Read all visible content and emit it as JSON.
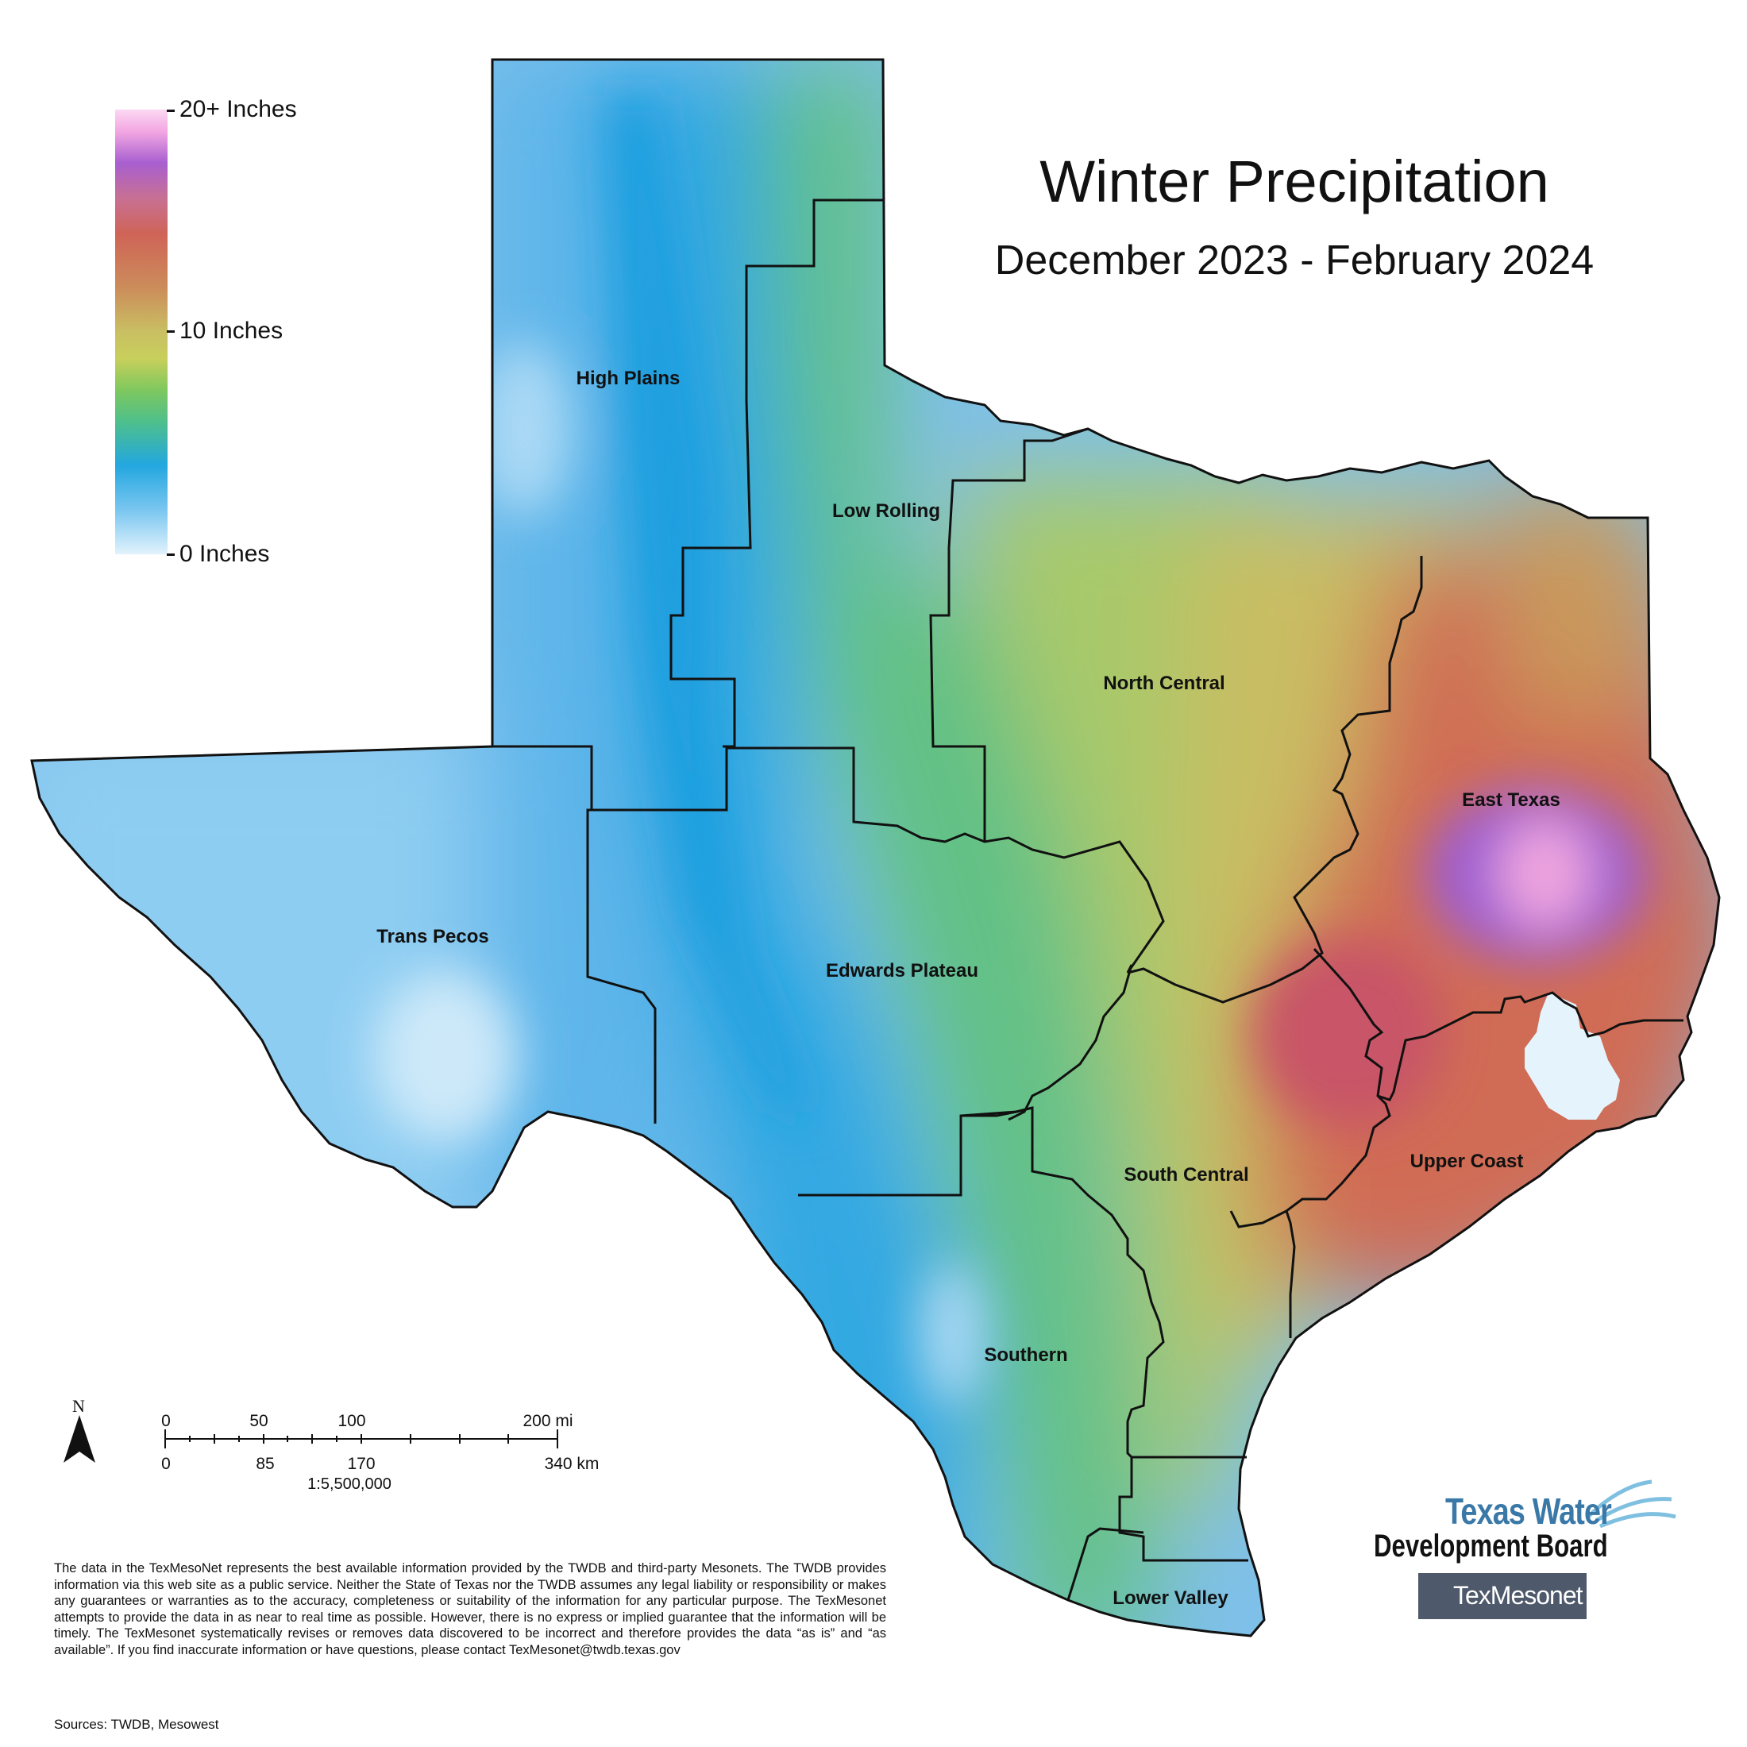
{
  "title": "Winter Precipitation",
  "subtitle": "December 2023 - February 2024",
  "legend": {
    "top_label": "20+ Inches",
    "mid_label": "10 Inches",
    "bottom_label": "0 Inches",
    "colors": [
      "#fbd8f2",
      "#a85fd0",
      "#cf6457",
      "#c9bf63",
      "#7fc85e",
      "#23a7df",
      "#e2f3fc"
    ]
  },
  "regions": [
    {
      "name": "High Plains",
      "id": "high-plains"
    },
    {
      "name": "Low Rolling",
      "id": "low-rolling"
    },
    {
      "name": "North Central",
      "id": "north-central"
    },
    {
      "name": "East Texas",
      "id": "east-texas"
    },
    {
      "name": "Trans Pecos",
      "id": "trans-pecos"
    },
    {
      "name": "Edwards Plateau",
      "id": "edwards-plateau"
    },
    {
      "name": "South Central",
      "id": "south-central"
    },
    {
      "name": "Upper Coast",
      "id": "upper-coast"
    },
    {
      "name": "Southern",
      "id": "southern"
    },
    {
      "name": "Lower Valley",
      "id": "lower-valley"
    }
  ],
  "scale_bar": {
    "north": "N",
    "miles": [
      "0",
      "50",
      "100",
      "200 mi"
    ],
    "km": [
      "0",
      "85",
      "170",
      "340 km"
    ],
    "ratio": "1:5,500,000"
  },
  "disclaimer": "The data in the TexMesoNet represents the best available information provided by the TWDB and third-party Mesonets. The TWDB provides information via this web site as a public service. Neither the State of Texas nor the TWDB assumes any legal liability or responsibility or makes any guarantees or warranties as to the accuracy, completeness or suitability of the information for any particular purpose. The TexMesonet attempts to provide the data in as near to real time as possible. However, there is no express or implied guarantee that the information will be timely. The TexMesonet systematically revises or removes data discovered to be incorrect and therefore provides the data “as is” and “as available”. If you find inaccurate information or have questions, please contact TexMesonet@twdb.texas.gov",
  "sources": "Sources: TWDB, Mesowest",
  "logos": {
    "twdb_line1": "Texas Water",
    "twdb_line2": "Development Board",
    "texmesonet": "TexMesonet"
  }
}
